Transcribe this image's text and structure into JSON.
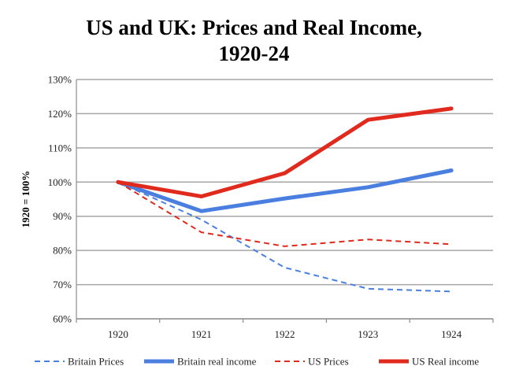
{
  "chart_data": {
    "type": "line",
    "title": "US and UK: Prices and Real Income,",
    "subtitle": "1920-24",
    "ylabel": "1920 = 100%",
    "xlabel": "",
    "categories": [
      "1920",
      "1921",
      "1922",
      "1923",
      "1924"
    ],
    "ylim": [
      60,
      130
    ],
    "yticks": [
      60,
      70,
      80,
      90,
      100,
      110,
      120,
      130
    ],
    "ytick_labels": [
      "60%",
      "70%",
      "80%",
      "90%",
      "100%",
      "110%",
      "120%",
      "130%"
    ],
    "grid": true,
    "legend": "bottom",
    "series": [
      {
        "name": "Britain Prices",
        "color": "#4a7fe0",
        "style": "dashed",
        "values": [
          100,
          89,
          75,
          68.8,
          68
        ]
      },
      {
        "name": "Britain real income",
        "color": "#4a7fe0",
        "style": "solid",
        "values": [
          100,
          91.5,
          95.2,
          98.5,
          103.4
        ]
      },
      {
        "name": "US Prices",
        "color": "#e02a1e",
        "style": "dashed",
        "values": [
          100,
          85.3,
          81.2,
          83.2,
          81.8
        ]
      },
      {
        "name": "US Real income",
        "color": "#e02a1e",
        "style": "solid",
        "values": [
          100,
          95.8,
          102.6,
          118.2,
          121.5
        ]
      }
    ]
  }
}
